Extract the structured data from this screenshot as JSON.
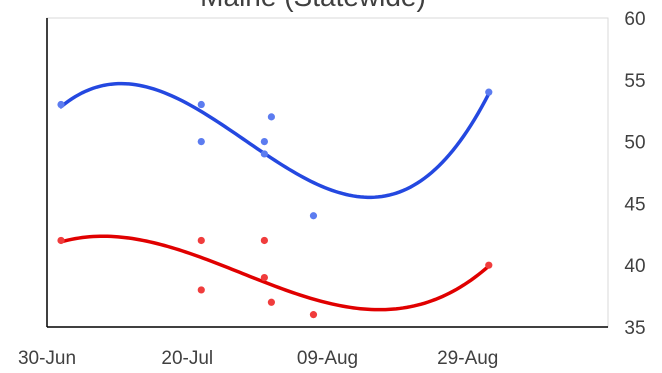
{
  "chart_data": {
    "type": "scatter",
    "title": "Maine (Statewide)",
    "xlabel": "",
    "ylabel": "",
    "x_axis": {
      "type": "date",
      "range": [
        "2020-06-30",
        "2020-09-18"
      ],
      "tick_values": [
        "2020-06-30",
        "2020-07-20",
        "2020-08-09",
        "2020-08-29"
      ],
      "tick_labels": [
        "30-Jun",
        "20-Jul",
        "09-Aug",
        "29-Aug"
      ]
    },
    "y_axis": {
      "position": "right",
      "range": [
        35,
        60
      ],
      "tick_values": [
        35,
        40,
        45,
        50,
        55,
        60
      ],
      "tick_labels": [
        "35",
        "40",
        "45",
        "50",
        "55",
        "60"
      ]
    },
    "grid": false,
    "legend": "none",
    "series": [
      {
        "color": "#2448e0",
        "point_color": "#5c7cf0",
        "trendline": "polynomial",
        "points": [
          {
            "x": "2020-07-02",
            "y": 53
          },
          {
            "x": "2020-07-22",
            "y": 53
          },
          {
            "x": "2020-07-22",
            "y": 50
          },
          {
            "x": "2020-07-31",
            "y": 50
          },
          {
            "x": "2020-07-31",
            "y": 49
          },
          {
            "x": "2020-08-01",
            "y": 52
          },
          {
            "x": "2020-08-07",
            "y": 44
          },
          {
            "x": "2020-09-01",
            "y": 54
          }
        ]
      },
      {
        "color": "#e00000",
        "point_color": "#f03c3c",
        "trendline": "polynomial",
        "points": [
          {
            "x": "2020-07-02",
            "y": 42
          },
          {
            "x": "2020-07-22",
            "y": 42
          },
          {
            "x": "2020-07-22",
            "y": 38
          },
          {
            "x": "2020-07-31",
            "y": 42
          },
          {
            "x": "2020-07-31",
            "y": 39
          },
          {
            "x": "2020-08-01",
            "y": 37
          },
          {
            "x": "2020-08-07",
            "y": 36
          },
          {
            "x": "2020-09-01",
            "y": 40
          }
        ]
      }
    ]
  }
}
